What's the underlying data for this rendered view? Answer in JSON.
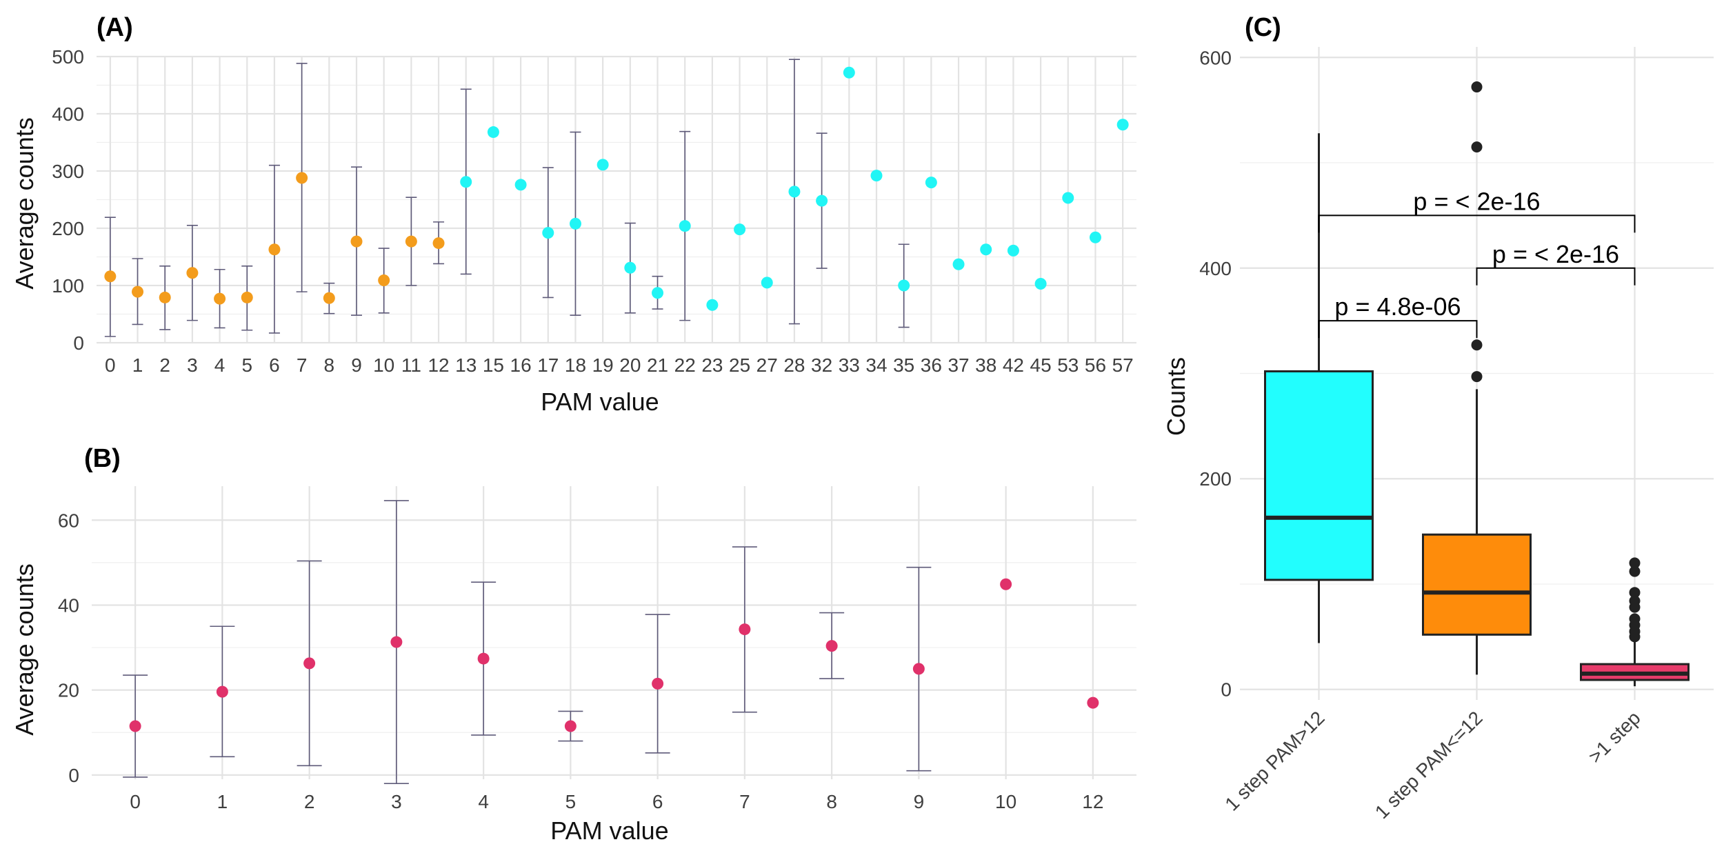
{
  "colors": {
    "low_pam": "#f39c1c",
    "high_pam": "#21f5f5",
    "panel_b": "#e0316a",
    "box_1step_high": "#22fefe",
    "box_1step_low": "#fe8c0b",
    "box_multi": "#e63c6b",
    "errorbar": "#5e5a79"
  },
  "chart_data": [
    {
      "panel": "(A)",
      "type": "scatter",
      "xlabel": "PAM value",
      "ylabel": "Average counts",
      "ylim": [
        0,
        500
      ],
      "yticks": [
        "0",
        "100",
        "200",
        "300",
        "400",
        "500"
      ],
      "categories": [
        "0",
        "1",
        "2",
        "3",
        "4",
        "5",
        "6",
        "7",
        "8",
        "9",
        "10",
        "11",
        "12",
        "13",
        "15",
        "16",
        "17",
        "18",
        "19",
        "20",
        "21",
        "22",
        "23",
        "25",
        "27",
        "28",
        "32",
        "33",
        "34",
        "35",
        "36",
        "37",
        "38",
        "42",
        "45",
        "53",
        "56",
        "57"
      ],
      "grid": true,
      "points": [
        {
          "x": "0",
          "y": 116,
          "lo": 11,
          "hi": 219,
          "group": "low"
        },
        {
          "x": "1",
          "y": 89,
          "lo": 32,
          "hi": 147,
          "group": "low"
        },
        {
          "x": "2",
          "y": 79,
          "lo": 23,
          "hi": 134,
          "group": "low"
        },
        {
          "x": "3",
          "y": 122,
          "lo": 39,
          "hi": 205,
          "group": "low"
        },
        {
          "x": "4",
          "y": 77,
          "lo": 26,
          "hi": 128,
          "group": "low"
        },
        {
          "x": "5",
          "y": 79,
          "lo": 22,
          "hi": 134,
          "group": "low"
        },
        {
          "x": "6",
          "y": 163,
          "lo": 17,
          "hi": 310,
          "group": "low"
        },
        {
          "x": "7",
          "y": 288,
          "lo": 89,
          "hi": 488,
          "group": "low"
        },
        {
          "x": "8",
          "y": 78,
          "lo": 51,
          "hi": 104,
          "group": "low"
        },
        {
          "x": "9",
          "y": 177,
          "lo": 48,
          "hi": 307,
          "group": "low"
        },
        {
          "x": "10",
          "y": 109,
          "lo": 52,
          "hi": 165,
          "group": "low"
        },
        {
          "x": "11",
          "y": 177,
          "lo": 100,
          "hi": 254,
          "group": "low"
        },
        {
          "x": "12",
          "y": 174,
          "lo": 138,
          "hi": 211,
          "group": "low"
        },
        {
          "x": "13",
          "y": 281,
          "lo": 120,
          "hi": 443,
          "group": "high"
        },
        {
          "x": "15",
          "y": 368,
          "group": "high"
        },
        {
          "x": "16",
          "y": 276,
          "group": "high"
        },
        {
          "x": "17",
          "y": 192,
          "lo": 79,
          "hi": 306,
          "group": "high"
        },
        {
          "x": "18",
          "y": 208,
          "lo": 48,
          "hi": 368,
          "group": "high"
        },
        {
          "x": "19",
          "y": 311,
          "group": "high"
        },
        {
          "x": "20",
          "y": 131,
          "lo": 52,
          "hi": 209,
          "group": "high"
        },
        {
          "x": "21",
          "y": 87,
          "lo": 59,
          "hi": 116,
          "group": "high"
        },
        {
          "x": "22",
          "y": 204,
          "lo": 39,
          "hi": 369,
          "group": "high"
        },
        {
          "x": "23",
          "y": 66,
          "group": "high"
        },
        {
          "x": "25",
          "y": 198,
          "group": "high"
        },
        {
          "x": "27",
          "y": 105,
          "group": "high"
        },
        {
          "x": "28",
          "y": 264,
          "lo": 33,
          "hi": 495,
          "group": "high"
        },
        {
          "x": "32",
          "y": 248,
          "lo": 130,
          "hi": 366,
          "group": "high"
        },
        {
          "x": "33",
          "y": 472,
          "group": "high"
        },
        {
          "x": "34",
          "y": 292,
          "group": "high"
        },
        {
          "x": "35",
          "y": 100,
          "lo": 27,
          "hi": 172,
          "group": "high"
        },
        {
          "x": "36",
          "y": 280,
          "group": "high"
        },
        {
          "x": "37",
          "y": 137,
          "group": "high"
        },
        {
          "x": "38",
          "y": 163,
          "group": "high"
        },
        {
          "x": "42",
          "y": 161,
          "group": "high"
        },
        {
          "x": "45",
          "y": 103,
          "group": "high"
        },
        {
          "x": "53",
          "y": 253,
          "group": "high"
        },
        {
          "x": "56",
          "y": 184,
          "group": "high"
        },
        {
          "x": "57",
          "y": 381,
          "group": "high"
        }
      ]
    },
    {
      "panel": "(B)",
      "type": "scatter",
      "xlabel": "PAM value",
      "ylabel": "Average counts",
      "ylim": [
        -1,
        68
      ],
      "yticks": [
        "0",
        "20",
        "40",
        "60"
      ],
      "categories": [
        "0",
        "1",
        "2",
        "3",
        "4",
        "5",
        "6",
        "7",
        "8",
        "9",
        "10",
        "12"
      ],
      "grid": true,
      "points": [
        {
          "x": "0",
          "y": 11.5,
          "lo": -0.5,
          "hi": 23.5
        },
        {
          "x": "1",
          "y": 19.6,
          "lo": 4.3,
          "hi": 35
        },
        {
          "x": "2",
          "y": 26.3,
          "lo": 2.2,
          "hi": 50.4
        },
        {
          "x": "3",
          "y": 31.3,
          "lo": -2,
          "hi": 64.6
        },
        {
          "x": "4",
          "y": 27.4,
          "lo": 9.4,
          "hi": 45.4
        },
        {
          "x": "5",
          "y": 11.5,
          "lo": 8,
          "hi": 15
        },
        {
          "x": "6",
          "y": 21.5,
          "lo": 5.2,
          "hi": 37.8
        },
        {
          "x": "7",
          "y": 34.3,
          "lo": 14.8,
          "hi": 53.7
        },
        {
          "x": "8",
          "y": 30.4,
          "lo": 22.7,
          "hi": 38.2
        },
        {
          "x": "9",
          "y": 25,
          "lo": 1,
          "hi": 48.9
        },
        {
          "x": "10",
          "y": 44.9
        },
        {
          "x": "12",
          "y": 17
        }
      ]
    },
    {
      "panel": "(C)",
      "type": "box",
      "xlabel": "",
      "ylabel": "Counts",
      "ylim": [
        -10,
        610
      ],
      "yticks": [
        "0",
        "200",
        "400",
        "600"
      ],
      "categories": [
        "1 step PAM>12",
        "1 step PAM<=12",
        ">1 step"
      ],
      "grid": true,
      "boxes": [
        {
          "category": "1 step PAM>12",
          "whisker_low": 44,
          "q1": 104,
          "median": 163,
          "q3": 302,
          "whisker_high": 528,
          "outliers": [],
          "color_key": "box_1step_high"
        },
        {
          "category": "1 step PAM<=12",
          "whisker_low": 14,
          "q1": 52,
          "median": 92,
          "q3": 147,
          "whisker_high": 285,
          "outliers": [
            297,
            327,
            515,
            572
          ],
          "color_key": "box_1step_low"
        },
        {
          "category": ">1 step",
          "whisker_low": 3,
          "q1": 9,
          "median": 15,
          "q3": 24,
          "whisker_high": 45,
          "outliers": [
            50,
            55,
            61,
            67,
            78,
            84,
            92,
            112,
            120
          ],
          "color_key": "box_multi"
        }
      ],
      "comparisons": [
        {
          "from": "1 step PAM>12",
          "to": ">1 step",
          "y": 450,
          "label": "p = < 2e-16"
        },
        {
          "from": "1 step PAM<=12",
          "to": ">1 step",
          "y": 400,
          "label": "p = < 2e-16"
        },
        {
          "from": "1 step PAM>12",
          "to": "1 step PAM<=12",
          "y": 350,
          "label": "p = 4.8e-06"
        }
      ]
    }
  ]
}
